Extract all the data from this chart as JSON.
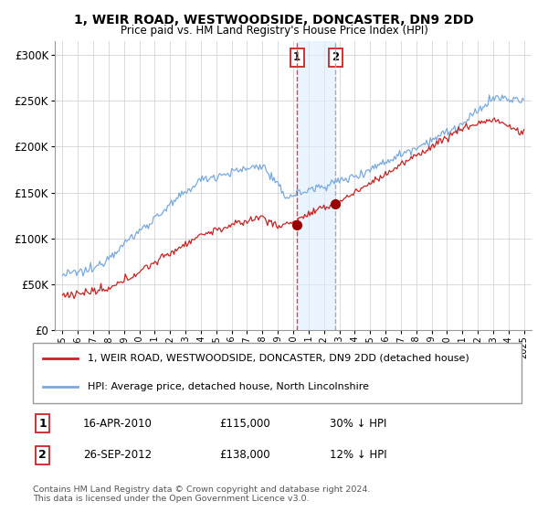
{
  "title": "1, WEIR ROAD, WESTWOODSIDE, DONCASTER, DN9 2DD",
  "subtitle": "Price paid vs. HM Land Registry's House Price Index (HPI)",
  "background_color": "#ffffff",
  "grid_color": "#cccccc",
  "transaction1": {
    "date": "16-APR-2010",
    "price": 115000,
    "label": "1",
    "hpi_diff": "30% ↓ HPI",
    "year": 2010.29
  },
  "transaction2": {
    "date": "26-SEP-2012",
    "price": 138000,
    "label": "2",
    "hpi_diff": "12% ↓ HPI",
    "year": 2012.75
  },
  "legend_line1": "1, WEIR ROAD, WESTWOODSIDE, DONCASTER, DN9 2DD (detached house)",
  "legend_line2": "HPI: Average price, detached house, North Lincolnshire",
  "footnote": "Contains HM Land Registry data © Crown copyright and database right 2024.\nThis data is licensed under the Open Government Licence v3.0.",
  "hpi_color": "#7aaadd",
  "price_color": "#cc2222",
  "marker_color": "#990000",
  "vline1_color": "#dd4444",
  "vline2_color": "#aaaaaa",
  "shade_color": "#ddeeff",
  "yticks": [
    0,
    50000,
    100000,
    150000,
    200000,
    250000,
    300000
  ],
  "ytick_labels": [
    "£0",
    "£50K",
    "£100K",
    "£150K",
    "£200K",
    "£250K",
    "£300K"
  ],
  "xlim": [
    1994.5,
    2025.5
  ],
  "ylim": [
    0,
    315000
  ]
}
